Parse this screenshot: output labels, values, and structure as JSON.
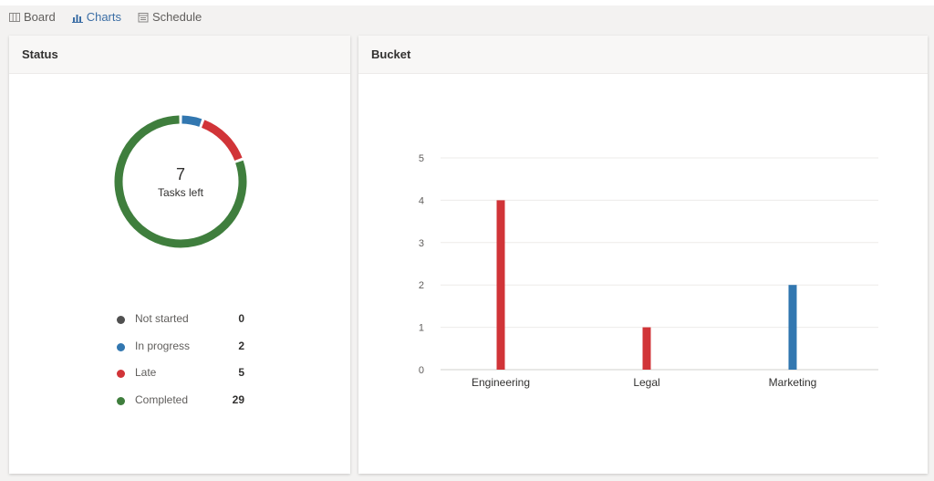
{
  "nav": {
    "items": [
      {
        "label": "Board",
        "icon": "board-icon",
        "active": false
      },
      {
        "label": "Charts",
        "icon": "charts-icon",
        "active": true
      },
      {
        "label": "Schedule",
        "icon": "schedule-icon",
        "active": false
      }
    ]
  },
  "status": {
    "title": "Status",
    "center_number": "7",
    "center_label": "Tasks left",
    "legend": [
      {
        "label": "Not started",
        "count": 0,
        "color": "#505050"
      },
      {
        "label": "In progress",
        "count": 2,
        "color": "#3277b0"
      },
      {
        "label": "Late",
        "count": 5,
        "color": "#d13438"
      },
      {
        "label": "Completed",
        "count": 29,
        "color": "#3f7e3d"
      }
    ]
  },
  "bucket": {
    "title": "Bucket"
  },
  "chart_data": [
    {
      "type": "pie",
      "title": "Status",
      "categories": [
        "Not started",
        "In progress",
        "Late",
        "Completed"
      ],
      "values": [
        0,
        2,
        5,
        29
      ],
      "colors": [
        "#505050",
        "#3277b0",
        "#d13438",
        "#3f7e3d"
      ],
      "donut": true,
      "legend": "bottom"
    },
    {
      "type": "bar",
      "title": "Bucket",
      "categories": [
        "Engineering",
        "Legal",
        "Marketing"
      ],
      "values": [
        4,
        1,
        2
      ],
      "colors": [
        "#d13438",
        "#d13438",
        "#3277b0"
      ],
      "ylim": [
        0,
        5
      ],
      "yticks": [
        0,
        1,
        2,
        3,
        4,
        5
      ],
      "grid": true
    }
  ]
}
